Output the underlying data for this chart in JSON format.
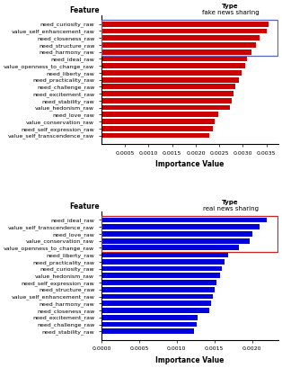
{
  "fake_features": [
    "need_curiosity_raw",
    "value_self_enhancement_raw",
    "need_closeness_raw",
    "need_structure_raw",
    "need_harmony_raw",
    "need_ideal_raw",
    "value_openness_to_change_raw",
    "need_liberty_raw",
    "need_practicality_raw",
    "need_challenge_raw",
    "need_excitement_raw",
    "need_stability_raw",
    "value_hedonism_raw",
    "need_love_raw",
    "value_conservation_raw",
    "need_self_expression_raw",
    "value_self_transcendence_raw"
  ],
  "fake_values": [
    0.00355,
    0.0035,
    0.00335,
    0.00328,
    0.00318,
    0.00308,
    0.00305,
    0.00298,
    0.00292,
    0.00283,
    0.0028,
    0.00276,
    0.00272,
    0.00248,
    0.0024,
    0.00236,
    0.00228
  ],
  "real_features": [
    "need_ideal_raw",
    "value_self_transcendence_raw",
    "need_love_raw",
    "value_conservation_raw",
    "value_openness_to_change_raw",
    "need_liberty_raw",
    "need_practicality_raw",
    "need_curiosity_raw",
    "value_hedonism_raw",
    "need_self_expression_raw",
    "need_structure_raw",
    "value_self_enhancement_raw",
    "need_harmony_raw",
    "need_closeness_raw",
    "need_excitement_raw",
    "need_challenge_raw",
    "need_stability_raw"
  ],
  "real_values": [
    0.0022,
    0.0021,
    0.002,
    0.00197,
    0.00183,
    0.00168,
    0.00163,
    0.0016,
    0.00158,
    0.00153,
    0.0015,
    0.00148,
    0.00146,
    0.00143,
    0.00128,
    0.00126,
    0.00123
  ],
  "fake_bar_color": "#CC0000",
  "fake_box_color": "#5566BB",
  "real_bar_color": "#0000DD",
  "real_box_color": "#CC2222",
  "fake_xticks": [
    0.0005,
    0.001,
    0.0015,
    0.002,
    0.0025,
    0.003,
    0.0035
  ],
  "fake_xlim_max": 0.00375,
  "real_xticks": [
    0.0,
    0.0005,
    0.001,
    0.0015,
    0.002
  ],
  "real_xlim_max": 0.00235,
  "xlabel": "Importance Value",
  "feature_label": "Feature",
  "type_label": "Type",
  "fake_type": "fake news sharing",
  "real_type": "real news sharing",
  "bar_height": 0.75,
  "tick_fs": 4.5,
  "label_fs": 5.5,
  "type_fs": 5.0,
  "header_fs": 5.5
}
